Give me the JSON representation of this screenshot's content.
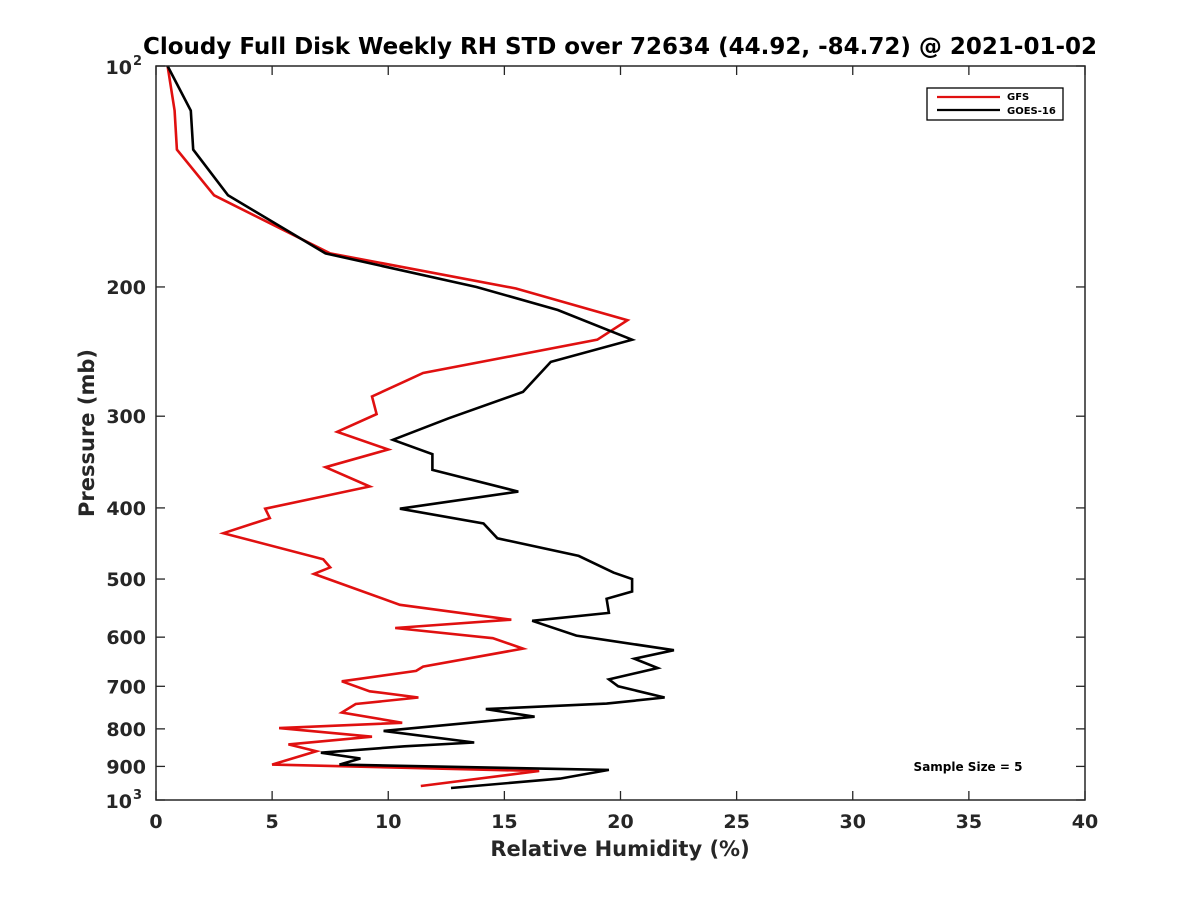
{
  "chart_data": {
    "type": "line",
    "title": "Cloudy Full Disk Weekly RH STD over 72634 (44.92, -84.72) @ 2021-01-02",
    "xlabel": "Relative Humidity (%)",
    "ylabel": "Pressure (mb)",
    "xlim": [
      0,
      40
    ],
    "ylim": [
      100,
      1000
    ],
    "y_scale": "log",
    "y_reversed": true,
    "grid": false,
    "legend_position": "top-right",
    "x_ticks": [
      "0",
      "5",
      "10",
      "15",
      "20",
      "25",
      "30",
      "35",
      "40"
    ],
    "y_ticks": [
      {
        "value": 100,
        "base": "10",
        "exp": "2"
      },
      {
        "value": 200,
        "label": "200"
      },
      {
        "value": 300,
        "label": "300"
      },
      {
        "value": 400,
        "label": "400"
      },
      {
        "value": 500,
        "label": "500"
      },
      {
        "value": 600,
        "label": "600"
      },
      {
        "value": 700,
        "label": "700"
      },
      {
        "value": 800,
        "label": "800"
      },
      {
        "value": 900,
        "label": "900"
      },
      {
        "value": 1000,
        "base": "10",
        "exp": "3"
      }
    ],
    "annotation": "Sample Size = 5",
    "series": [
      {
        "name": "GFS",
        "color": "#e01010",
        "points": [
          [
            0.5,
            100
          ],
          [
            0.8,
            115
          ],
          [
            0.9,
            130
          ],
          [
            2.5,
            150
          ],
          [
            7.5,
            180
          ],
          [
            15.5,
            201
          ],
          [
            20.3,
            222
          ],
          [
            19.0,
            236
          ],
          [
            11.5,
            262
          ],
          [
            9.3,
            282
          ],
          [
            9.5,
            298
          ],
          [
            7.8,
            315
          ],
          [
            10.0,
            333
          ],
          [
            7.3,
            352
          ],
          [
            9.2,
            374
          ],
          [
            4.7,
            401
          ],
          [
            4.9,
            413
          ],
          [
            2.9,
            433
          ],
          [
            7.2,
            470
          ],
          [
            7.5,
            482
          ],
          [
            6.8,
            492
          ],
          [
            10.5,
            542
          ],
          [
            15.3,
            568
          ],
          [
            10.3,
            583
          ],
          [
            14.5,
            602
          ],
          [
            15.8,
            622
          ],
          [
            11.5,
            658
          ],
          [
            11.2,
            667
          ],
          [
            8.0,
            689
          ],
          [
            9.2,
            711
          ],
          [
            11.3,
            725
          ],
          [
            8.6,
            740
          ],
          [
            8.0,
            760
          ],
          [
            10.6,
            785
          ],
          [
            5.3,
            798
          ],
          [
            9.3,
            820
          ],
          [
            5.7,
            840
          ],
          [
            6.9,
            858
          ],
          [
            5.0,
            895
          ],
          [
            16.5,
            913
          ],
          [
            11.4,
            957
          ]
        ]
      },
      {
        "name": "GOES-16",
        "color": "#000000",
        "points": [
          [
            0.5,
            100
          ],
          [
            1.5,
            115
          ],
          [
            1.6,
            130
          ],
          [
            3.1,
            150
          ],
          [
            7.3,
            180
          ],
          [
            13.8,
            200
          ],
          [
            17.3,
            215
          ],
          [
            20.5,
            236
          ],
          [
            17.0,
            253
          ],
          [
            15.8,
            278
          ],
          [
            12.6,
            302
          ],
          [
            10.2,
            323
          ],
          [
            11.9,
            338
          ],
          [
            11.9,
            355
          ],
          [
            15.6,
            380
          ],
          [
            10.5,
            401
          ],
          [
            14.1,
            420
          ],
          [
            14.7,
            440
          ],
          [
            18.2,
            465
          ],
          [
            19.7,
            490
          ],
          [
            20.5,
            500
          ],
          [
            20.5,
            520
          ],
          [
            19.4,
            532
          ],
          [
            19.5,
            556
          ],
          [
            16.2,
            570
          ],
          [
            18.1,
            597
          ],
          [
            22.3,
            625
          ],
          [
            20.6,
            642
          ],
          [
            21.6,
            661
          ],
          [
            19.5,
            685
          ],
          [
            19.9,
            700
          ],
          [
            21.9,
            725
          ],
          [
            19.4,
            739
          ],
          [
            14.2,
            752
          ],
          [
            16.3,
            770
          ],
          [
            9.8,
            805
          ],
          [
            13.7,
            835
          ],
          [
            10.7,
            845
          ],
          [
            7.1,
            862
          ],
          [
            8.8,
            878
          ],
          [
            7.9,
            895
          ],
          [
            19.5,
            910
          ],
          [
            17.4,
            935
          ],
          [
            12.7,
            963
          ]
        ]
      }
    ]
  }
}
